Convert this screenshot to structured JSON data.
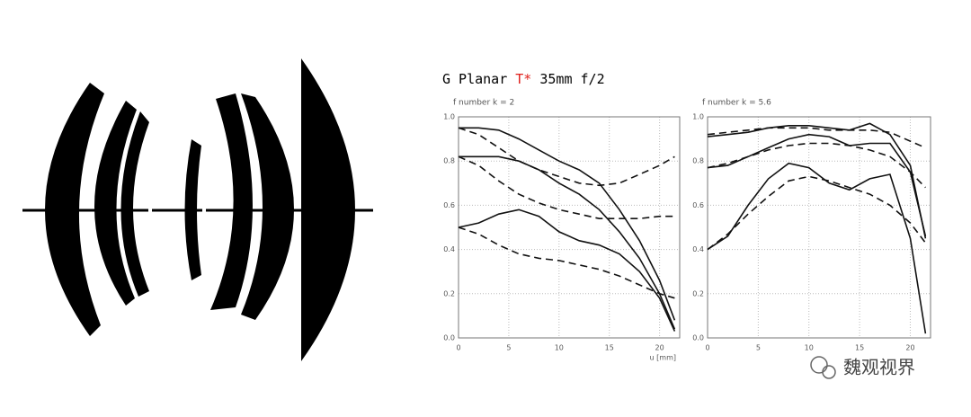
{
  "title": {
    "brand": "G Planar",
    "mark": "T*",
    "spec": "35mm f/2",
    "mark_color": "#e0201c"
  },
  "watermark": "魏观视界",
  "chart_data": [
    {
      "type": "line",
      "subtitle": "f number k = 2",
      "x_label": "u [mm]",
      "x": [
        0,
        2,
        4,
        6,
        8,
        10,
        12,
        14,
        16,
        18,
        20,
        21.5
      ],
      "xlim": [
        0,
        22
      ],
      "xticks": [
        0,
        5,
        10,
        15,
        20
      ],
      "ylim": [
        0,
        1
      ],
      "yticks": [
        {
          "value": 0,
          "label": "0.0"
        },
        0.2,
        0.4,
        0.6,
        0.8,
        {
          "value": 1,
          "label": "1.0"
        }
      ],
      "grid": true,
      "series": [
        {
          "color": "#111111",
          "style": "solid",
          "values": [
            0.95,
            0.95,
            0.94,
            0.9,
            0.85,
            0.8,
            0.76,
            0.7,
            0.58,
            0.44,
            0.26,
            0.08
          ]
        },
        {
          "color": "#111111",
          "style": "solid",
          "values": [
            0.82,
            0.82,
            0.82,
            0.8,
            0.76,
            0.7,
            0.65,
            0.58,
            0.48,
            0.36,
            0.2,
            0.04
          ]
        },
        {
          "color": "#111111",
          "style": "solid",
          "values": [
            0.5,
            0.52,
            0.56,
            0.58,
            0.55,
            0.48,
            0.44,
            0.42,
            0.38,
            0.3,
            0.18,
            0.03
          ]
        },
        {
          "color": "#111111",
          "style": "dashed",
          "values": [
            0.95,
            0.92,
            0.86,
            0.8,
            0.76,
            0.73,
            0.7,
            0.69,
            0.7,
            0.74,
            0.78,
            0.82
          ]
        },
        {
          "color": "#111111",
          "style": "dashed",
          "values": [
            0.82,
            0.78,
            0.71,
            0.65,
            0.61,
            0.58,
            0.56,
            0.54,
            0.54,
            0.54,
            0.55,
            0.55
          ]
        },
        {
          "color": "#111111",
          "style": "dashed",
          "values": [
            0.5,
            0.47,
            0.42,
            0.38,
            0.36,
            0.35,
            0.33,
            0.31,
            0.28,
            0.24,
            0.2,
            0.18
          ]
        }
      ]
    },
    {
      "type": "line",
      "subtitle": "f number k = 5.6",
      "x": [
        0,
        2,
        4,
        6,
        8,
        10,
        12,
        14,
        16,
        18,
        20,
        21.5
      ],
      "xlim": [
        0,
        22
      ],
      "xticks": [
        0,
        5,
        10,
        15,
        20
      ],
      "ylim": [
        0,
        1
      ],
      "yticks": [
        {
          "value": 0,
          "label": "0.0"
        },
        0.2,
        0.4,
        0.6,
        0.8,
        {
          "value": 1,
          "label": "1.0"
        }
      ],
      "grid": true,
      "series": [
        {
          "color": "#111111",
          "style": "solid",
          "values": [
            0.91,
            0.92,
            0.93,
            0.95,
            0.96,
            0.96,
            0.95,
            0.94,
            0.97,
            0.92,
            0.78,
            0.45
          ]
        },
        {
          "color": "#111111",
          "style": "solid",
          "values": [
            0.77,
            0.78,
            0.82,
            0.86,
            0.9,
            0.92,
            0.91,
            0.87,
            0.88,
            0.88,
            0.75,
            0.46
          ]
        },
        {
          "color": "#111111",
          "style": "solid",
          "values": [
            0.4,
            0.46,
            0.6,
            0.72,
            0.79,
            0.77,
            0.7,
            0.67,
            0.72,
            0.74,
            0.45,
            0.02
          ]
        },
        {
          "color": "#111111",
          "style": "dashed",
          "values": [
            0.92,
            0.93,
            0.94,
            0.95,
            0.95,
            0.95,
            0.94,
            0.94,
            0.94,
            0.93,
            0.89,
            0.86
          ]
        },
        {
          "color": "#111111",
          "style": "dashed",
          "values": [
            0.77,
            0.79,
            0.82,
            0.85,
            0.87,
            0.88,
            0.88,
            0.87,
            0.85,
            0.82,
            0.75,
            0.68
          ]
        },
        {
          "color": "#111111",
          "style": "dashed",
          "values": [
            0.4,
            0.47,
            0.56,
            0.64,
            0.71,
            0.73,
            0.71,
            0.68,
            0.65,
            0.6,
            0.52,
            0.43
          ]
        }
      ]
    }
  ]
}
